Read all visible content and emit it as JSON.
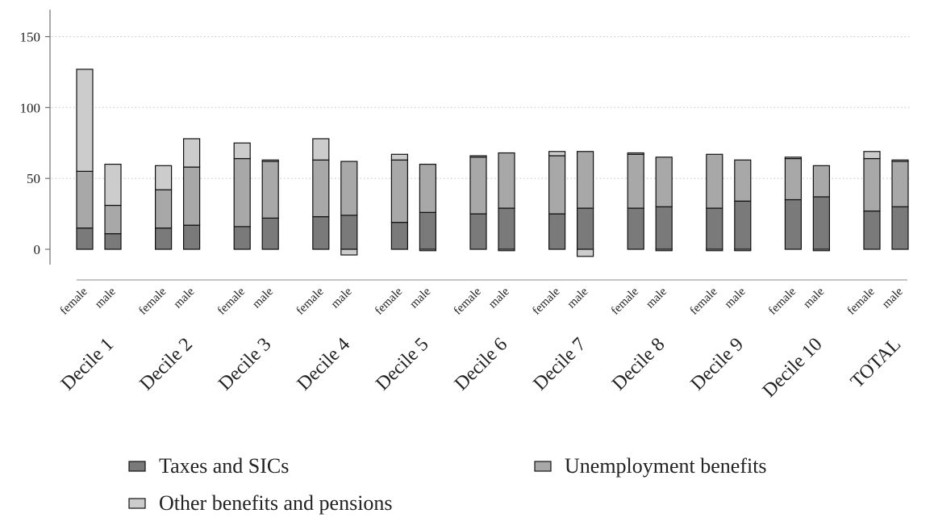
{
  "chart_data": {
    "type": "bar",
    "stacked": true,
    "subcategories": [
      "female",
      "male"
    ],
    "groups": [
      "Decile 1",
      "Decile 2",
      "Decile 3",
      "Decile 4",
      "Decile 5",
      "Decile 6",
      "Decile 7",
      "Decile 8",
      "Decile 9",
      "Decile 10",
      "TOTAL"
    ],
    "series": [
      {
        "name": "Taxes and SICs",
        "color": "#7a7a7a",
        "values": [
          [
            15,
            11
          ],
          [
            15,
            17
          ],
          [
            16,
            22
          ],
          [
            23,
            24
          ],
          [
            19,
            26
          ],
          [
            25,
            29
          ],
          [
            25,
            29
          ],
          [
            29,
            30
          ],
          [
            29,
            34
          ],
          [
            35,
            37
          ],
          [
            27,
            30
          ]
        ]
      },
      {
        "name": "Unemployment benefits",
        "color": "#a8a8a8",
        "values": [
          [
            40,
            20
          ],
          [
            27,
            41
          ],
          [
            48,
            40
          ],
          [
            40,
            38
          ],
          [
            44,
            34
          ],
          [
            40,
            39
          ],
          [
            41,
            40
          ],
          [
            38,
            35
          ],
          [
            38,
            29
          ],
          [
            29,
            22
          ],
          [
            37,
            32
          ]
        ]
      },
      {
        "name": "Other benefits and pensions",
        "color": "#cccccc",
        "values": [
          [
            72,
            29
          ],
          [
            17,
            20
          ],
          [
            11,
            1
          ],
          [
            15,
            0
          ],
          [
            4,
            0
          ],
          [
            1,
            0
          ],
          [
            3,
            0
          ],
          [
            1,
            0
          ],
          [
            0,
            0
          ],
          [
            1,
            0
          ],
          [
            5,
            1
          ]
        ]
      }
    ],
    "negative_values": [
      [
        0,
        0
      ],
      [
        0,
        0
      ],
      [
        0,
        0
      ],
      [
        0,
        -4
      ],
      [
        0,
        -1
      ],
      [
        0,
        -1
      ],
      [
        0,
        -5
      ],
      [
        0,
        -1
      ],
      [
        -1,
        -1
      ],
      [
        0,
        -1
      ],
      [
        0,
        0
      ]
    ],
    "y_ticks": [
      0,
      50,
      100,
      150
    ],
    "ylim": [
      -10,
      170
    ],
    "grid": true,
    "legend_position": "bottom"
  }
}
